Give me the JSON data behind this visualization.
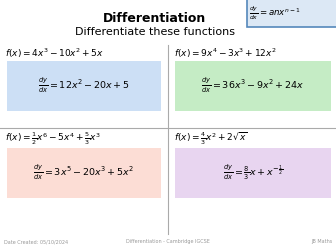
{
  "title": "Differentiation",
  "subtitle": "Differentiate these functions",
  "background_color": "#ffffff",
  "formula_box_color": "#dce8f5",
  "formula_box_border": "#5588bb",
  "top_left_box": "#ccdff5",
  "top_right_box": "#c5ecc5",
  "bot_left_box": "#fcddd5",
  "bot_right_box": "#e8d5f0",
  "footer_left": "Date Created: 05/10/2024",
  "footer_center": "Differentiation - Cambridge IGCSE",
  "footer_right": "JB Maths",
  "divider_color": "#aaaaaa",
  "title_fontsize": 9,
  "subtitle_fontsize": 8,
  "func_fontsize": 6.5,
  "ans_fontsize": 6.8
}
